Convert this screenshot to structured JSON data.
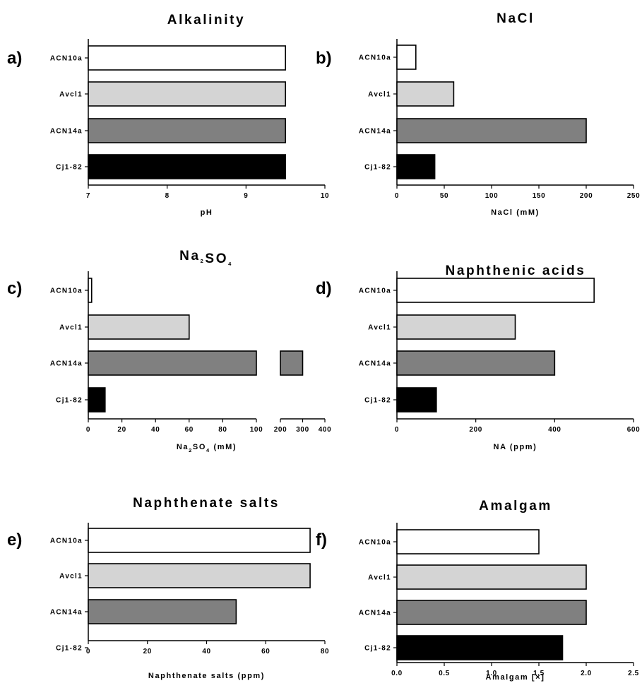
{
  "colors": {
    "ACN10a": "#ffffff",
    "Avcl1": "#d4d4d4",
    "ACN14a": "#808080",
    "Cj1-82": "#000000"
  },
  "chart_data": [
    {
      "panel": "a)",
      "type": "bar",
      "orientation": "horizontal",
      "title": "Alkalinity",
      "xlabel": "pH",
      "categories": [
        "ACN10a",
        "Avcl1",
        "ACN14a",
        "Cj1-82"
      ],
      "values": [
        9.5,
        9.5,
        9.5,
        9.5
      ],
      "xlim": [
        7,
        10
      ],
      "ticks": [
        "7",
        "8",
        "9",
        "10"
      ]
    },
    {
      "panel": "b)",
      "type": "bar",
      "orientation": "horizontal",
      "title": "NaCl",
      "xlabel": "NaCl (mM)",
      "categories": [
        "ACN10a",
        "Avcl1",
        "ACN14a",
        "Cj1-82"
      ],
      "values": [
        20,
        60,
        200,
        40
      ],
      "xlim": [
        0,
        250
      ],
      "ticks": [
        "0",
        "50",
        "100",
        "150",
        "200",
        "250"
      ]
    },
    {
      "panel": "c)",
      "type": "bar",
      "orientation": "horizontal",
      "title": {
        "pre": "Na",
        "s1": "2",
        "mid": "SO",
        "s2": "4",
        "post": ""
      },
      "xlabel": {
        "pre": "Na",
        "s1": "2",
        "mid": "SO",
        "s2": "4",
        "post": " (mM)"
      },
      "categories": [
        "ACN10a",
        "Avcl1",
        "ACN14a",
        "Cj1-82"
      ],
      "values": [
        2,
        60,
        300,
        10
      ],
      "axis_break": {
        "lower": [
          0,
          100
        ],
        "upper": [
          200,
          400
        ]
      },
      "ticks": [
        "0",
        "20",
        "40",
        "60",
        "80",
        "100",
        "200",
        "300",
        "400"
      ]
    },
    {
      "panel": "d)",
      "type": "bar",
      "orientation": "horizontal",
      "title": "Naphthenic acids",
      "xlabel": "NA (ppm)",
      "categories": [
        "ACN10a",
        "Avcl1",
        "ACN14a",
        "Cj1-82"
      ],
      "values": [
        500,
        300,
        400,
        100
      ],
      "xlim": [
        0,
        600
      ],
      "ticks": [
        "0",
        "200",
        "400",
        "600"
      ]
    },
    {
      "panel": "e)",
      "type": "bar",
      "orientation": "horizontal",
      "title": "Naphthenate salts",
      "xlabel": "Naphthenate salts (ppm)",
      "categories": [
        "ACN10a",
        "Avcl1",
        "ACN14a",
        "Cj1-82"
      ],
      "values": [
        75,
        75,
        50,
        0
      ],
      "xlim": [
        0,
        80
      ],
      "ticks": [
        "0",
        "20",
        "40",
        "60",
        "80"
      ]
    },
    {
      "panel": "f)",
      "type": "bar",
      "orientation": "horizontal",
      "title": "Amalgam",
      "xlabel": "Amalgam [×]",
      "categories": [
        "ACN10a",
        "Avcl1",
        "ACN14a",
        "Cj1-82"
      ],
      "values": [
        1.5,
        2.0,
        2.0,
        1.75
      ],
      "xlim": [
        0,
        2.5
      ],
      "ticks": [
        "0.0",
        "0.5",
        "1.0",
        "1.5",
        "2.0",
        "2.5"
      ]
    }
  ]
}
